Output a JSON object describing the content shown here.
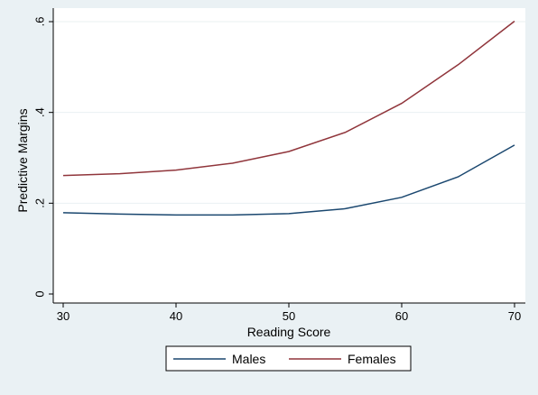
{
  "chart_data": {
    "type": "line",
    "title": "",
    "xlabel": "Reading Score",
    "ylabel": "Predictive Margins",
    "xlim": [
      30,
      70
    ],
    "ylim": [
      0,
      0.6
    ],
    "x_ticks": [
      30,
      40,
      50,
      60,
      70
    ],
    "x_tick_labels": [
      "30",
      "40",
      "50",
      "60",
      "70"
    ],
    "y_ticks": [
      0,
      0.2,
      0.4,
      0.6
    ],
    "y_tick_labels": [
      "0",
      ".2",
      ".4",
      ".6"
    ],
    "grid": true,
    "legend_position": "bottom",
    "x": [
      30,
      35,
      40,
      45,
      50,
      55,
      60,
      65,
      70
    ],
    "series": [
      {
        "name": "Males",
        "color": "#1a476f",
        "values": [
          0.179,
          0.176,
          0.174,
          0.174,
          0.177,
          0.188,
          0.213,
          0.258,
          0.328
        ]
      },
      {
        "name": "Females",
        "color": "#90353b",
        "values": [
          0.261,
          0.265,
          0.273,
          0.288,
          0.314,
          0.356,
          0.42,
          0.505,
          0.601
        ]
      }
    ]
  }
}
